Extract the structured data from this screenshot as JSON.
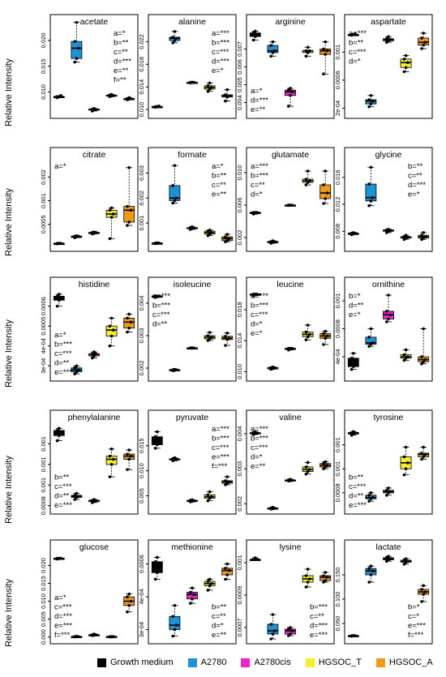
{
  "figure": {
    "ylabel": "Relative Intensity",
    "group_colors": [
      "#000000",
      "#1b93d4",
      "#ee22c9",
      "#f6ee2a",
      "#f09a1a"
    ]
  },
  "legend": {
    "placement": "bottom",
    "items": [
      {
        "label": "Growth medium",
        "color": "#000000"
      },
      {
        "label": "A2780",
        "color": "#1b93d4"
      },
      {
        "label": "A2780cis",
        "color": "#ee22c9"
      },
      {
        "label": "HGSOC_T",
        "color": "#f6ee2a"
      },
      {
        "label": "HGSOC_A",
        "color": "#f09a1a"
      }
    ]
  },
  "chart_data": [
    {
      "type": "box",
      "title": "acetate",
      "yticks": [
        0.01,
        0.015,
        0.02
      ],
      "ylim": [
        0.0055,
        0.0225
      ],
      "groups": [
        [
          0.0089,
          0.0091,
          0.0093,
          0.0089,
          0.0091
        ],
        [
          0.0158,
          0.0165,
          0.0185,
          0.0198,
          0.0235
        ],
        [
          0.0063,
          0.0065,
          0.0066,
          0.0067,
          0.0068
        ],
        [
          0.0091,
          0.0092,
          0.0093,
          0.0094,
          0.0095
        ],
        [
          0.0085,
          0.0086,
          0.0087,
          0.0087,
          0.0089
        ]
      ],
      "annotations": [
        "a=*",
        "b=**",
        "c=**",
        "d=***",
        "e=**",
        "f=**"
      ],
      "annot_side": "right"
    },
    {
      "type": "box",
      "title": "alanine",
      "yticks": [
        0.01,
        0.014,
        0.018,
        0.022
      ],
      "ylim": [
        0.009,
        0.0245
      ],
      "groups": [
        [
          0.0104,
          0.0105,
          0.0106,
          0.0105,
          0.0105
        ],
        [
          0.0218,
          0.0222,
          0.0226,
          0.0228,
          0.0238
        ],
        [
          0.0147,
          0.0148,
          0.0148,
          0.0148,
          0.0148
        ],
        [
          0.0132,
          0.0136,
          0.0139,
          0.0142,
          0.0147
        ],
        [
          0.0115,
          0.0122,
          0.0124,
          0.0126,
          0.0135
        ]
      ],
      "annotations": [
        "a=***",
        "b=***",
        "c=***",
        "d=***",
        "e=*"
      ],
      "annot_side": "right"
    },
    {
      "type": "box",
      "title": "arginine",
      "yticks": [
        0.004,
        0.005,
        0.006,
        0.007
      ],
      "ylim": [
        0.0033,
        0.0082
      ],
      "groups": [
        [
          0.0075,
          0.0077,
          0.0078,
          0.0079,
          0.008
        ],
        [
          0.0066,
          0.0068,
          0.0069,
          0.0072,
          0.0074
        ],
        [
          0.0038,
          0.0044,
          0.0046,
          0.0047,
          0.0048
        ],
        [
          0.0066,
          0.0068,
          0.0069,
          0.0069,
          0.0071
        ],
        [
          0.0056,
          0.0067,
          0.0069,
          0.007,
          0.0074
        ]
      ],
      "annotations": [
        "a=*",
        "d=***",
        "e=**"
      ],
      "annot_side": "left-low"
    },
    {
      "type": "box",
      "title": "aspartate",
      "yticks": [
        0.0002,
        0.0006,
        0.001
      ],
      "ylim": [
        0.0001,
        0.00135
      ],
      "groups": [
        [
          0.00124,
          0.00125,
          0.00126,
          0.00125,
          0.00125
        ],
        [
          0.00022,
          0.00026,
          0.0003,
          0.00032,
          0.00038
        ],
        [
          0.00114,
          0.00116,
          0.00118,
          0.00119,
          0.00122
        ],
        [
          0.00072,
          0.00078,
          0.00085,
          0.0009,
          0.00095
        ],
        [
          0.00105,
          0.0011,
          0.00114,
          0.0012,
          0.00127
        ]
      ],
      "annotations": [
        "a=***",
        "b=**",
        "c=***",
        "d=*"
      ],
      "annot_side": "left"
    },
    {
      "type": "box",
      "title": "citrate",
      "yticks": [
        0.0005,
        0.001,
        0.0015
      ],
      "ylim": [
        0.0,
        0.00185
      ],
      "groups": [
        [
          9e-05,
          0.0001,
          0.0001,
          0.0001,
          0.0001
        ],
        [
          0.00022,
          0.00024,
          0.00025,
          0.00025,
          0.00026
        ],
        [
          0.0003,
          0.00031,
          0.00033,
          0.00033,
          0.00034
        ],
        [
          0.0002,
          0.00065,
          0.00072,
          0.0008,
          0.00085
        ],
        [
          0.00048,
          0.00055,
          0.0008,
          0.00088,
          0.0017
        ]
      ],
      "annotations": [
        "a=*"
      ],
      "annot_side": "left"
    },
    {
      "type": "box",
      "title": "formate",
      "yticks": [
        0.001,
        0.002,
        0.003
      ],
      "ylim": [
        0.0,
        0.0035
      ],
      "groups": [
        [
          0.00018,
          0.00019,
          0.0002,
          0.0002,
          0.00021
        ],
        [
          0.0018,
          0.0019,
          0.002,
          0.0025,
          0.0033
        ],
        [
          0.00075,
          0.00078,
          0.0008,
          0.00082,
          0.00085
        ],
        [
          0.0005,
          0.00056,
          0.00062,
          0.00068,
          0.00072
        ],
        [
          0.00025,
          0.0003,
          0.00038,
          0.00045,
          0.00055
        ]
      ],
      "annotations": [
        "a=*",
        "b=**",
        "c=**",
        "e=**"
      ],
      "annot_side": "right"
    },
    {
      "type": "box",
      "title": "glutamate",
      "yticks": [
        0.002,
        0.006,
        0.01
      ],
      "ylim": [
        0.0007,
        0.0115
      ],
      "groups": [
        [
          0.0049,
          0.005,
          0.0051,
          0.0051,
          0.0051
        ],
        [
          0.0013,
          0.0014,
          0.0015,
          0.0015,
          0.0016
        ],
        [
          0.006,
          0.006,
          0.006,
          0.006,
          0.006
        ],
        [
          0.0085,
          0.0088,
          0.009,
          0.0092,
          0.0102
        ],
        [
          0.0062,
          0.0068,
          0.0075,
          0.0085,
          0.0102
        ]
      ],
      "annotations": [
        "a=***",
        "b=***",
        "c=**",
        "d=*"
      ],
      "annot_side": "left"
    },
    {
      "type": "box",
      "title": "glycine",
      "yticks": [
        0.008,
        0.012,
        0.016
      ],
      "ylim": [
        0.0055,
        0.0185
      ],
      "groups": [
        [
          0.0075,
          0.0076,
          0.0077,
          0.0077,
          0.0078
        ],
        [
          0.0118,
          0.0125,
          0.013,
          0.015,
          0.0175
        ],
        [
          0.0078,
          0.008,
          0.0081,
          0.0082,
          0.0083
        ],
        [
          0.0068,
          0.007,
          0.0071,
          0.0072,
          0.0074
        ],
        [
          0.0068,
          0.007,
          0.0072,
          0.0074,
          0.0078
        ]
      ],
      "annotations": [
        "b=**",
        "c=**",
        "d=***",
        "e=*"
      ],
      "annot_side": "right"
    },
    {
      "type": "box",
      "title": "histidine",
      "yticks": [
        0.0003,
        0.0004,
        0.0005,
        0.0006
      ],
      "ylim": [
        0.00024,
        0.00068
      ],
      "groups": [
        [
          0.0006,
          0.00063,
          0.00064,
          0.00065,
          0.00066
        ],
        [
          0.00026,
          0.00027,
          0.00028,
          0.00029,
          0.0003
        ],
        [
          0.00034,
          0.00035,
          0.00036,
          0.00036,
          0.00037
        ],
        [
          0.0004,
          0.00045,
          0.00048,
          0.0005,
          0.00054
        ],
        [
          0.00047,
          0.00049,
          0.00052,
          0.00054,
          0.00056
        ]
      ],
      "annotations": [
        "a=*",
        "b=***",
        "c=***",
        "d=**",
        "e=***"
      ],
      "annot_side": "left-low"
    },
    {
      "type": "box",
      "title": "isoleucine",
      "yticks": [
        0.0015,
        0.0025,
        0.0035
      ],
      "ylim": [
        0.0012,
        0.0039
      ],
      "groups": [
        [
          0.00368,
          0.0037,
          0.00372,
          0.00372,
          0.00372
        ],
        [
          0.00142,
          0.00143,
          0.00145,
          0.00145,
          0.00146
        ],
        [
          0.00212,
          0.00212,
          0.00212,
          0.00212,
          0.00212
        ],
        [
          0.00235,
          0.0024,
          0.00245,
          0.0025,
          0.0026
        ],
        [
          0.0022,
          0.00238,
          0.00242,
          0.00248,
          0.00258
        ]
      ],
      "annotations": [
        "a=***",
        "b=***",
        "c=***",
        "d=**"
      ],
      "annot_side": "left"
    },
    {
      "type": "box",
      "title": "leucine",
      "yticks": [
        0.01,
        0.014,
        0.018
      ],
      "ylim": [
        0.0092,
        0.0205
      ],
      "groups": [
        [
          0.0198,
          0.0199,
          0.02,
          0.02,
          0.02
        ],
        [
          0.0103,
          0.0104,
          0.0105,
          0.0105,
          0.0106
        ],
        [
          0.0128,
          0.0129,
          0.013,
          0.013,
          0.013
        ],
        [
          0.0141,
          0.0145,
          0.0148,
          0.0151,
          0.016
        ],
        [
          0.0135,
          0.0143,
          0.0146,
          0.0149,
          0.0152
        ]
      ],
      "annotations": [
        "a=***",
        "b=***",
        "c=***",
        "d=*",
        "e=*"
      ],
      "annot_side": "left"
    },
    {
      "type": "box",
      "title": "ornithine",
      "yticks": [
        0.0004,
        0.0008,
        0.0012
      ],
      "ylim": [
        0.0001,
        0.00135
      ],
      "groups": [
        [
          0.00022,
          0.00026,
          0.0003,
          0.00038,
          0.00045
        ],
        [
          0.00055,
          0.00058,
          0.0006,
          0.00068,
          0.0008
        ],
        [
          0.0009,
          0.00094,
          0.001,
          0.00105,
          0.00128
        ],
        [
          0.00035,
          0.00038,
          0.0004,
          0.00043,
          0.0005
        ],
        [
          0.0003,
          0.00033,
          0.00036,
          0.0004,
          0.0008
        ]
      ],
      "annotations": [
        "b=*",
        "d=**",
        "e=*"
      ],
      "annot_side": "left"
    },
    {
      "type": "box",
      "title": "phenylalanine",
      "yticks": [
        0.0008,
        0.001,
        0.0012,
        0.0014
      ],
      "ylim": [
        0.00075,
        0.0016
      ],
      "groups": [
        [
          0.00143,
          0.00148,
          0.0015,
          0.00153,
          0.00155
        ],
        [
          0.00086,
          0.00088,
          0.00089,
          0.0009,
          0.00092
        ],
        [
          0.00083,
          0.00084,
          0.00085,
          0.00085,
          0.00086
        ],
        [
          0.00108,
          0.0012,
          0.00125,
          0.00128,
          0.00135
        ],
        [
          0.00115,
          0.00125,
          0.00128,
          0.0013,
          0.00134
        ]
      ],
      "annotations": [
        "b=**",
        "c=***",
        "d=**",
        "e=***"
      ],
      "annot_side": "left-low"
    },
    {
      "type": "box",
      "title": "pyruvate",
      "yticks": [
        0.005,
        0.01,
        0.015
      ],
      "ylim": [
        0.002,
        0.0195
      ],
      "groups": [
        [
          0.0145,
          0.0152,
          0.0158,
          0.0168,
          0.0178
        ],
        [
          0.012,
          0.0122,
          0.0123,
          0.0124,
          0.0126
        ],
        [
          0.0038,
          0.0039,
          0.004,
          0.0041,
          0.0042
        ],
        [
          0.004,
          0.0045,
          0.0048,
          0.0052,
          0.0058
        ],
        [
          0.0072,
          0.0075,
          0.0078,
          0.008,
          0.0088
        ]
      ],
      "annotations": [
        "a=***",
        "b=***",
        "c=***",
        "e=***",
        "f=***"
      ],
      "annot_side": "right"
    },
    {
      "type": "box",
      "title": "valine",
      "yticks": [
        0.002,
        0.003,
        0.004
      ],
      "ylim": [
        0.0018,
        0.0043
      ],
      "groups": [
        [
          0.00398,
          0.004,
          0.00402,
          0.00403,
          0.00405
        ],
        [
          0.00185,
          0.00186,
          0.00187,
          0.00188,
          0.0019
        ],
        [
          0.00265,
          0.00266,
          0.00267,
          0.00268,
          0.0027
        ],
        [
          0.00285,
          0.00292,
          0.00298,
          0.00305,
          0.00318
        ],
        [
          0.003,
          0.00305,
          0.0031,
          0.00315,
          0.0032
        ]
      ],
      "annotations": [
        "a=***",
        "b=***",
        "c=***",
        "d=*",
        "e=**"
      ],
      "annot_side": "left"
    },
    {
      "type": "box",
      "title": "tyrosine",
      "yticks": [
        0.0008,
        0.001,
        0.0012
      ],
      "ylim": [
        0.00065,
        0.00138
      ],
      "groups": [
        [
          0.00128,
          0.00129,
          0.0013,
          0.0013,
          0.00131
        ],
        [
          0.00073,
          0.00075,
          0.00076,
          0.00078,
          0.0008
        ],
        [
          0.00078,
          0.0008,
          0.00081,
          0.00082,
          0.00084
        ],
        [
          0.00095,
          0.001,
          0.00105,
          0.0011,
          0.00118
        ],
        [
          0.00108,
          0.0011,
          0.00112,
          0.00113,
          0.00118
        ]
      ],
      "annotations": [
        "b=**",
        "c=***",
        "d=**",
        "e=***"
      ],
      "annot_side": "left-low"
    },
    {
      "type": "box",
      "title": "glucose",
      "yticks": [
        0.0,
        0.005,
        0.01,
        0.015,
        0.02
      ],
      "ylim": [
        -0.001,
        0.0235
      ],
      "groups": [
        [
          0.0218,
          0.0219,
          0.022,
          0.022,
          0.022
        ],
        [
          0.0,
          0.0001,
          0.0001,
          0.0001,
          0.0002
        ],
        [
          0.0004,
          0.0005,
          0.0006,
          0.0006,
          0.0008
        ],
        [
          0.0,
          0.0,
          0.0001,
          0.0001,
          0.0001
        ],
        [
          0.007,
          0.0088,
          0.01,
          0.0112,
          0.012
        ]
      ],
      "annotations": [
        "a=*",
        "c=***",
        "d=***",
        "e=***",
        "f=***"
      ],
      "annot_side": "left-low"
    },
    {
      "type": "box",
      "title": "methionine",
      "yticks": [
        0.00025,
        0.0004,
        0.00055
      ],
      "ylim": [
        0.0002,
        0.0006
      ],
      "groups": [
        [
          0.00048,
          0.00051,
          0.00054,
          0.00056,
          0.00058
        ],
        [
          0.00022,
          0.00025,
          0.00027,
          0.00031,
          0.00036
        ],
        [
          0.00037,
          0.00039,
          0.00041,
          0.00042,
          0.00044
        ],
        [
          0.00043,
          0.00045,
          0.00046,
          0.00047,
          0.00048
        ],
        [
          0.00048,
          0.0005,
          0.00052,
          0.00053,
          0.00055
        ]
      ],
      "annotations": [
        "b=**",
        "c=**",
        "d=*",
        "e=**"
      ],
      "annot_side": "right-low"
    },
    {
      "type": "box",
      "title": "lysine",
      "yticks": [
        0.0007,
        0.0009,
        0.0011
      ],
      "ylim": [
        0.00062,
        0.00116
      ],
      "groups": [
        [
          0.00112,
          0.00112,
          0.00112,
          0.00112,
          0.00113
        ],
        [
          0.00063,
          0.00066,
          0.00068,
          0.00072,
          0.00078
        ],
        [
          0.00065,
          0.00066,
          0.00068,
          0.00069,
          0.0007
        ],
        [
          0.00095,
          0.00098,
          0.001,
          0.00102,
          0.00106
        ],
        [
          0.00098,
          0.00099,
          0.00101,
          0.00102,
          0.00104
        ]
      ],
      "annotations": [
        "b=***",
        "c=**",
        "d=***",
        "e=***"
      ],
      "annot_side": "right-low"
    },
    {
      "type": "box",
      "title": "lactate",
      "yticks": [
        0.05,
        0.1,
        0.15
      ],
      "ylim": [
        0.015,
        0.195
      ],
      "groups": [
        [
          0.024,
          0.025,
          0.025,
          0.025,
          0.025
        ],
        [
          0.135,
          0.15,
          0.158,
          0.163,
          0.168
        ],
        [
          0.178,
          0.181,
          0.183,
          0.185,
          0.188
        ],
        [
          0.172,
          0.176,
          0.178,
          0.18,
          0.183
        ],
        [
          0.095,
          0.11,
          0.115,
          0.12,
          0.128
        ]
      ],
      "annotations": [
        "b=*",
        "c=*",
        "e=***",
        "f=***"
      ],
      "annot_side": "right-low"
    }
  ]
}
